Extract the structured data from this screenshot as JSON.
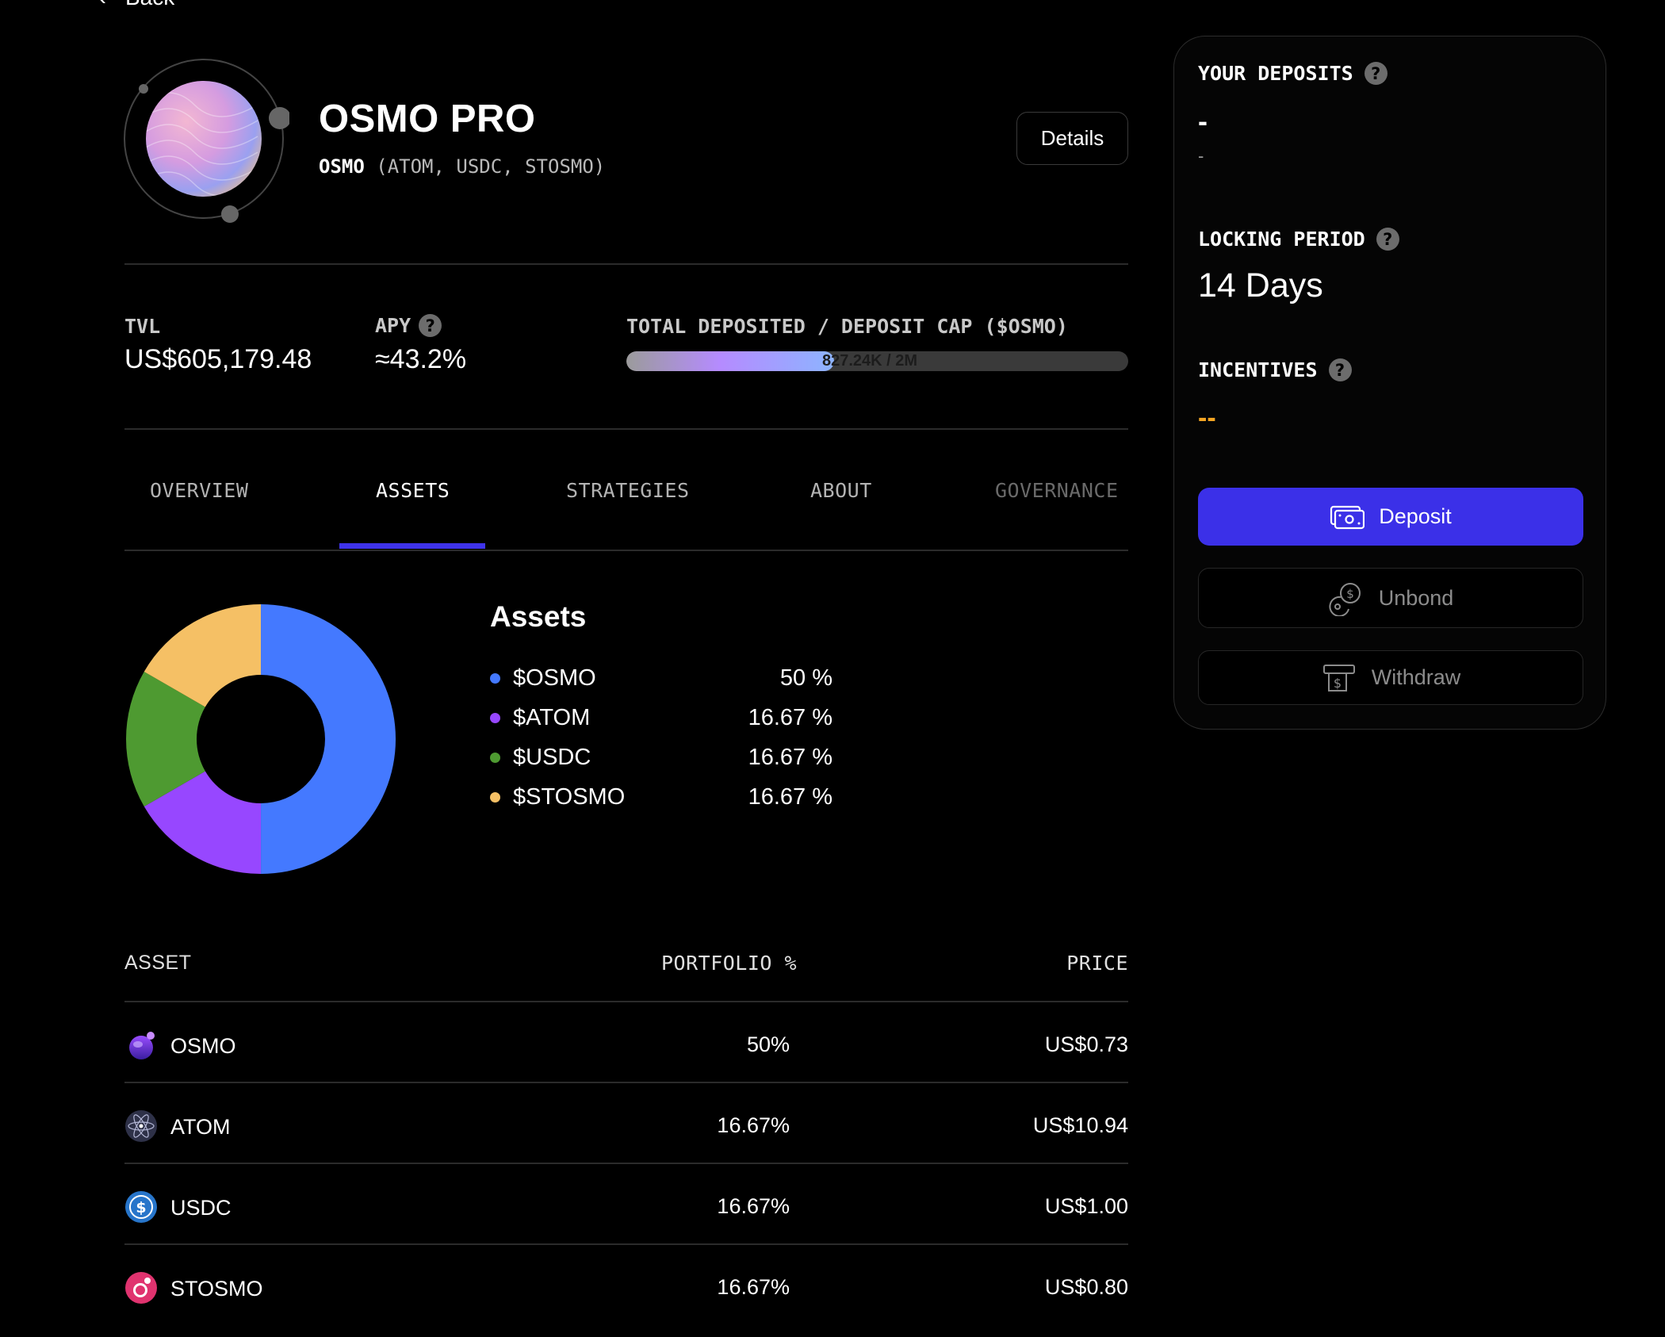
{
  "back": {
    "label": "Back"
  },
  "vault": {
    "title": "OSMO PRO",
    "base_asset": "OSMO",
    "other_assets": "(ATOM, USDC, STOSMO)",
    "details_label": "Details"
  },
  "stats": {
    "tvl_label": "TVL",
    "tvl_value": "US$605,179.48",
    "apy_label": "APY",
    "apy_value": "≈43.2%",
    "deposit_label": "TOTAL DEPOSITED / DEPOSIT CAP ($OSMO)",
    "deposit_text": "827.24K / 2M",
    "deposit_fraction": 0.414
  },
  "tabs": [
    {
      "label": "OVERVIEW",
      "state": "normal"
    },
    {
      "label": "ASSETS",
      "state": "active"
    },
    {
      "label": "STRATEGIES",
      "state": "normal"
    },
    {
      "label": "ABOUT",
      "state": "normal"
    },
    {
      "label": "GOVERNANCE",
      "state": "disabled"
    }
  ],
  "chart_data": {
    "type": "pie",
    "title": "Assets",
    "categories": [
      "$OSMO",
      "$ATOM",
      "$USDC",
      "$STOSMO"
    ],
    "values": [
      50,
      16.67,
      16.67,
      16.67
    ],
    "labels": [
      "50 %",
      "16.67 %",
      "16.67 %",
      "16.67 %"
    ],
    "colors": [
      "#4479ff",
      "#9747ff",
      "#4e9a31",
      "#f5c065"
    ],
    "legend": "right"
  },
  "table": {
    "headers": {
      "asset": "ASSET",
      "portfolio": "PORTFOLIO %",
      "price": "PRICE"
    },
    "rows": [
      {
        "asset": "OSMO",
        "portfolio": "50%",
        "price": "US$0.73",
        "icon": "osmo-token-icon"
      },
      {
        "asset": "ATOM",
        "portfolio": "16.67%",
        "price": "US$10.94",
        "icon": "atom-token-icon"
      },
      {
        "asset": "USDC",
        "portfolio": "16.67%",
        "price": "US$1.00",
        "icon": "usdc-token-icon"
      },
      {
        "asset": "STOSMO",
        "portfolio": "16.67%",
        "price": "US$0.80",
        "icon": "stosmo-token-icon"
      }
    ]
  },
  "panel": {
    "deposits_label": "YOUR DEPOSITS",
    "deposits_value": "-",
    "deposits_sub": "-",
    "locking_label": "LOCKING PERIOD",
    "locking_value": "14 Days",
    "incentives_label": "INCENTIVES",
    "incentives_value": "--",
    "incentives_color": "#f5a623",
    "deposit_btn": "Deposit",
    "unbond_btn": "Unbond",
    "withdraw_btn": "Withdraw"
  },
  "help_glyph": "?"
}
